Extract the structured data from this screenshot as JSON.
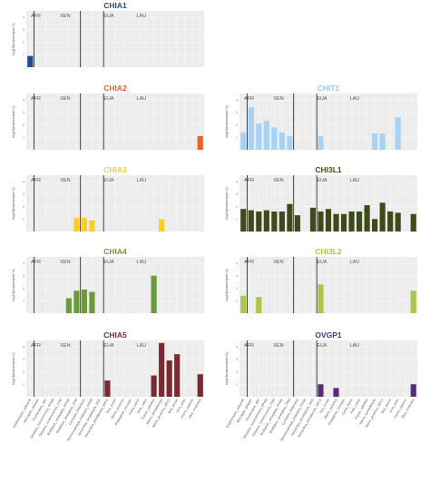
{
  "figure": {
    "clades": [
      "AFR",
      "XEN",
      "EUA",
      "LAU"
    ],
    "ylabel": "log10(transcripts+1)",
    "species": [
      "Elephantulus_edwardii",
      "Microgale_talazaci",
      "Orycteropus_afer",
      "Dasypus_novemcinctus_FPKM",
      "Dasypus_novemcinctus_TPM",
      "Bradypus_variegatus_FPKM",
      "Bradypus_variegatus_TPM",
      "Cyclopes_didactylus",
      "Myrmecophaga_tridactyla_FPKM",
      "Tamandua_tetradactyla_SRX",
      "Tamandua_tetradactyla_SRX2",
      "Sus_scrofa",
      "Manis_javanica",
      "Phataginus_tricuspis",
      "Canis_lupus",
      "Felis_catus",
      "Equus_caballus",
      "Manis_pentadactyla",
      "Manis_javanica_SRX2",
      "Bos_taurus",
      "Ovis_aries",
      "Homo_sapiens",
      "Mus_musculus"
    ]
  },
  "chart_data": [
    {
      "type": "bar",
      "title": "CHIA1",
      "title_color": "#1f4e8c",
      "bar_color": "#1f4e8c",
      "categories_ref": "figure.species",
      "values": [
        0.9,
        null,
        null,
        null,
        null,
        null,
        null,
        null,
        null,
        null,
        null,
        null,
        null,
        null,
        null,
        null,
        null,
        null,
        null,
        null,
        null,
        null,
        null
      ],
      "ylim": [
        0,
        4.5
      ],
      "grid": true
    },
    {
      "type": "bar",
      "title": "CHIA2",
      "title_color": "#e8602c",
      "bar_color": "#e8602c",
      "categories_ref": "figure.species",
      "values": [
        null,
        null,
        null,
        null,
        null,
        null,
        null,
        null,
        null,
        null,
        null,
        null,
        null,
        null,
        null,
        null,
        null,
        null,
        null,
        null,
        null,
        null,
        1.1
      ],
      "ylim": [
        0,
        4.5
      ],
      "grid": true
    },
    {
      "type": "bar",
      "title": "CHIT1",
      "title_color": "#8fc8f0",
      "bar_color": "#a6d3f5",
      "categories_ref": "figure.species",
      "values": [
        1.4,
        3.4,
        2.1,
        2.3,
        1.8,
        1.4,
        1.1,
        null,
        null,
        null,
        1.1,
        null,
        null,
        null,
        null,
        null,
        null,
        1.3,
        1.3,
        null,
        2.6,
        null,
        null
      ],
      "ylim": [
        0,
        4.5
      ],
      "grid": true
    },
    {
      "type": "bar",
      "title": "CHIA3",
      "title_color": "#f7cf2a",
      "bar_color": "#f7cf2a",
      "categories_ref": "figure.species",
      "values": [
        null,
        null,
        null,
        null,
        null,
        null,
        1.1,
        1.1,
        0.9,
        null,
        null,
        null,
        null,
        null,
        null,
        null,
        null,
        1.0,
        null,
        null,
        null,
        null,
        null
      ],
      "ylim": [
        0,
        4.5
      ],
      "grid": true
    },
    {
      "type": "bar",
      "title": "CHI3L1",
      "title_color": "#3e4a1a",
      "bar_color": "#3e4a1a",
      "categories_ref": "figure.species",
      "values": [
        1.8,
        1.7,
        1.6,
        1.7,
        1.6,
        1.6,
        2.2,
        1.3,
        null,
        1.9,
        1.6,
        1.8,
        1.4,
        1.4,
        1.6,
        1.6,
        2.1,
        1.0,
        2.3,
        1.6,
        1.5,
        null,
        1.4
      ],
      "ylim": [
        0,
        4.5
      ],
      "grid": true
    },
    {
      "type": "bar",
      "title": "CHIA4",
      "title_color": "#6a9a3a",
      "bar_color": "#6a9a3a",
      "categories_ref": "figure.species",
      "values": [
        null,
        null,
        null,
        null,
        null,
        1.2,
        1.8,
        1.9,
        1.7,
        null,
        null,
        null,
        null,
        null,
        null,
        null,
        3.0,
        null,
        null,
        null,
        null,
        null,
        null
      ],
      "ylim": [
        0,
        4.5
      ],
      "grid": true
    },
    {
      "type": "bar",
      "title": "CHI3L2",
      "title_color": "#a8c84a",
      "bar_color": "#a8c84a",
      "categories_ref": "figure.species",
      "values": [
        1.4,
        null,
        1.3,
        null,
        null,
        null,
        null,
        null,
        null,
        null,
        2.3,
        null,
        null,
        null,
        null,
        null,
        null,
        null,
        null,
        null,
        null,
        null,
        1.8
      ],
      "ylim": [
        0,
        4.5
      ],
      "grid": true
    },
    {
      "type": "bar",
      "title": "CHIA5",
      "title_color": "#7a2a35",
      "bar_color": "#7a2a35",
      "categories_ref": "figure.species",
      "values": [
        null,
        null,
        null,
        null,
        null,
        null,
        null,
        null,
        null,
        null,
        1.3,
        null,
        null,
        null,
        null,
        null,
        1.7,
        4.3,
        2.9,
        3.4,
        null,
        null,
        1.8
      ],
      "ylim": [
        0,
        4.5
      ],
      "grid": true
    },
    {
      "type": "bar",
      "title": "OVGP1",
      "title_color": "#5a2a7a",
      "bar_color": "#5a2a7a",
      "categories_ref": "figure.species",
      "values": [
        null,
        null,
        null,
        null,
        null,
        null,
        null,
        null,
        null,
        null,
        1.0,
        null,
        0.7,
        null,
        null,
        null,
        null,
        null,
        null,
        null,
        null,
        null,
        1.0
      ],
      "ylim": [
        0,
        4.5
      ],
      "grid": true
    }
  ]
}
